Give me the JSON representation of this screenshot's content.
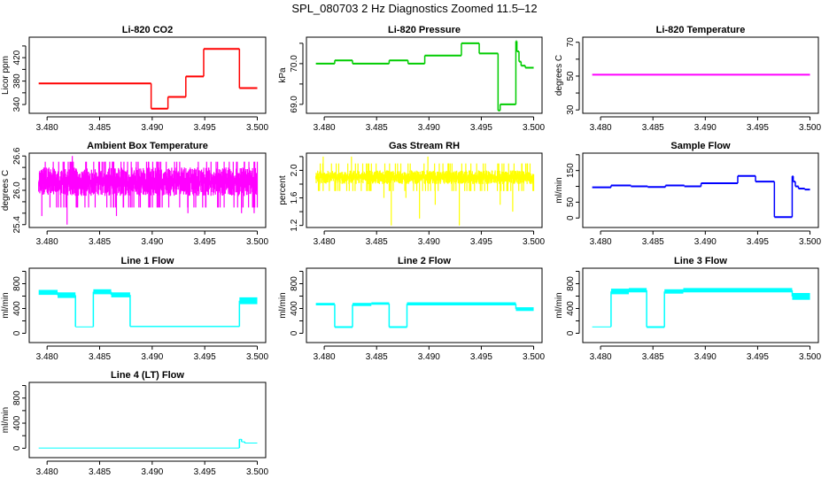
{
  "title": "SPL_080703  2 Hz Diagnostics Zoomed 11.5–12",
  "x_axis": {
    "ticks": [
      3.48,
      3.485,
      3.49,
      3.495,
      3.5
    ],
    "labels": [
      "3.480",
      "3.485",
      "3.490",
      "3.495",
      "3.500"
    ],
    "xlim": [
      3.4783,
      3.5008
    ]
  },
  "chart_data": [
    {
      "type": "line",
      "title": "Li-820 CO2",
      "ylabel": "Licor ppm",
      "color": "#ff0000",
      "ylim": [
        325,
        455
      ],
      "yticks": [
        340,
        360,
        380,
        400,
        420,
        440
      ],
      "ylabels": [
        "340",
        "",
        "380",
        "",
        "420",
        ""
      ],
      "segments": [
        [
          3.4792,
          3.4899,
          376
        ],
        [
          3.4899,
          3.4915,
          333
        ],
        [
          3.4915,
          3.4932,
          353
        ],
        [
          3.4932,
          3.4949,
          388
        ],
        [
          3.4949,
          3.4983,
          435
        ],
        [
          3.4983,
          3.5,
          368
        ]
      ]
    },
    {
      "type": "line",
      "title": "Li-820 Pressure",
      "ylabel": "kPa",
      "color": "#00cc00",
      "ylim": [
        68.78,
        70.65
      ],
      "yticks": [
        69.0,
        69.5,
        70.0,
        70.5
      ],
      "ylabels": [
        "69.0",
        "",
        "70.0",
        ""
      ],
      "segments": [
        [
          3.4792,
          3.481,
          70.0
        ],
        [
          3.481,
          3.4827,
          70.08
        ],
        [
          3.4827,
          3.4862,
          70.0
        ],
        [
          3.4862,
          3.488,
          70.08
        ],
        [
          3.488,
          3.4896,
          70.0
        ],
        [
          3.4896,
          3.4931,
          70.2
        ],
        [
          3.4931,
          3.4948,
          70.5
        ],
        [
          3.4948,
          3.4966,
          70.25
        ],
        [
          3.4966,
          3.4968,
          68.85
        ],
        [
          3.4968,
          3.4983,
          69.0
        ],
        [
          3.4983,
          3.4984,
          70.55
        ],
        [
          3.4984,
          3.4986,
          70.3
        ],
        [
          3.4986,
          3.4988,
          70.05
        ],
        [
          3.4988,
          3.4992,
          69.95
        ],
        [
          3.4992,
          3.5,
          69.9
        ]
      ]
    },
    {
      "type": "line",
      "title": "Li-820 Temperature",
      "ylabel": "degrees C",
      "color": "#ff00ff",
      "ylim": [
        28,
        73
      ],
      "yticks": [
        30,
        40,
        50,
        60,
        70
      ],
      "ylabels": [
        "30",
        "",
        "50",
        "",
        "70"
      ],
      "segments": [
        [
          3.4792,
          3.5,
          50.8
        ]
      ]
    },
    {
      "type": "line",
      "title": "Ambient Box Temperature",
      "ylabel": "degrees C",
      "color": "#ff00ff",
      "ylim": [
        25.35,
        26.65
      ],
      "yticks": [
        25.4,
        25.6,
        25.8,
        26.0,
        26.2,
        26.4,
        26.6
      ],
      "ylabels": [
        "25.4",
        "",
        "",
        "26.0",
        "",
        "",
        "26.6"
      ],
      "noise": {
        "x": [
          3.4792,
          3.5
        ],
        "lo": 25.9,
        "hi": 26.4,
        "rare_lo": 25.7,
        "rare_hi": 26.5
      },
      "spikes": [
        [
          3.4819,
          25.4
        ],
        [
          3.4795,
          25.55
        ],
        [
          3.4866,
          25.55
        ],
        [
          3.4934,
          25.6
        ],
        [
          3.4985,
          25.6
        ],
        [
          3.4997,
          25.6
        ],
        [
          3.4824,
          26.6
        ]
      ]
    },
    {
      "type": "line",
      "title": "Gas Stream RH",
      "ylabel": "percent",
      "color": "#ffff00",
      "ylim": [
        1.17,
        2.25
      ],
      "yticks": [
        1.2,
        1.4,
        1.6,
        1.8,
        2.0,
        2.2
      ],
      "ylabels": [
        "1.2",
        "",
        "1.6",
        "",
        "2.0",
        ""
      ],
      "noise": {
        "x": [
          3.4792,
          3.5
        ],
        "lo": 1.8,
        "hi": 2.0,
        "rare_lo": 1.7,
        "rare_hi": 2.1
      },
      "spikes": [
        [
          3.4864,
          1.2
        ],
        [
          3.4891,
          1.3
        ],
        [
          3.4929,
          1.2
        ],
        [
          3.4906,
          1.5
        ],
        [
          3.4968,
          1.5
        ],
        [
          3.498,
          1.4
        ],
        [
          3.4857,
          1.6
        ],
        [
          3.4878,
          1.6
        ],
        [
          3.4826,
          2.2
        ],
        [
          3.4899,
          2.2
        ],
        [
          3.4799,
          2.2
        ]
      ]
    },
    {
      "type": "line",
      "title": "Sample Flow",
      "ylabel": "ml/min",
      "color": "#0000ff",
      "ylim": [
        -30,
        205
      ],
      "yticks": [
        0,
        50,
        100,
        150,
        200
      ],
      "ylabels": [
        "0",
        "50",
        "",
        "150",
        ""
      ],
      "segments": [
        [
          3.4792,
          3.481,
          97
        ],
        [
          3.481,
          3.4829,
          103
        ],
        [
          3.4829,
          3.4845,
          100
        ],
        [
          3.4845,
          3.4862,
          98
        ],
        [
          3.4862,
          3.488,
          103
        ],
        [
          3.488,
          3.4896,
          100
        ],
        [
          3.4896,
          3.4931,
          110
        ],
        [
          3.4931,
          3.4948,
          133
        ],
        [
          3.4948,
          3.4966,
          115
        ],
        [
          3.4966,
          3.4983,
          3
        ],
        [
          3.4983,
          3.4984,
          132
        ],
        [
          3.4984,
          3.4986,
          115
        ],
        [
          3.4986,
          3.4989,
          100
        ],
        [
          3.4989,
          3.4995,
          93
        ],
        [
          3.4995,
          3.5,
          90
        ]
      ]
    },
    {
      "type": "line",
      "title": "Line 1 Flow",
      "ylabel": "ml/min",
      "color": "#00ffff",
      "ylim": [
        -150,
        1050
      ],
      "yticks": [
        0,
        200,
        400,
        600,
        800,
        1000
      ],
      "ylabels": [
        "0",
        "",
        "400",
        "",
        "800",
        ""
      ],
      "segments": [
        [
          3.4792,
          3.481,
          620,
          700
        ],
        [
          3.481,
          3.4827,
          570,
          660
        ],
        [
          3.4827,
          3.4844,
          100,
          110
        ],
        [
          3.4844,
          3.4861,
          630,
          710
        ],
        [
          3.4861,
          3.4879,
          580,
          660
        ],
        [
          3.4879,
          3.4983,
          100,
          120
        ],
        [
          3.4983,
          3.5,
          470,
          580
        ]
      ]
    },
    {
      "type": "line",
      "title": "Line 2 Flow",
      "ylabel": "ml/min",
      "color": "#00ffff",
      "ylim": [
        -150,
        1050
      ],
      "yticks": [
        0,
        200,
        400,
        600,
        800,
        1000
      ],
      "ylabels": [
        "0",
        "",
        "400",
        "",
        "800",
        ""
      ],
      "segments": [
        [
          3.4792,
          3.481,
          450,
          490
        ],
        [
          3.481,
          3.4827,
          100,
          100
        ],
        [
          3.4827,
          3.4845,
          440,
          490
        ],
        [
          3.4845,
          3.4862,
          460,
          500
        ],
        [
          3.4862,
          3.4879,
          100,
          100
        ],
        [
          3.4879,
          3.4983,
          450,
          500
        ],
        [
          3.4983,
          3.5,
          360,
          420
        ]
      ]
    },
    {
      "type": "line",
      "title": "Line 3 Flow",
      "ylabel": "ml/min",
      "color": "#00ffff",
      "ylim": [
        -150,
        1050
      ],
      "yticks": [
        0,
        200,
        400,
        600,
        800,
        1000
      ],
      "ylabels": [
        "0",
        "",
        "400",
        "",
        "800",
        ""
      ],
      "segments": [
        [
          3.4792,
          3.481,
          100,
          110
        ],
        [
          3.481,
          3.4827,
          630,
          720
        ],
        [
          3.4827,
          3.4844,
          660,
          730
        ],
        [
          3.4844,
          3.4861,
          100,
          100
        ],
        [
          3.4861,
          3.4879,
          640,
          710
        ],
        [
          3.4879,
          3.4983,
          660,
          730
        ],
        [
          3.4983,
          3.5,
          540,
          650
        ]
      ]
    },
    {
      "type": "line",
      "title": "Line 4 (LT) Flow",
      "ylabel": "ml/min",
      "color": "#00ffff",
      "ylim": [
        -150,
        1050
      ],
      "yticks": [
        0,
        200,
        400,
        600,
        800,
        1000
      ],
      "ylabels": [
        "0",
        "",
        "400",
        "",
        "800",
        ""
      ],
      "segments": [
        [
          3.4792,
          3.4983,
          0,
          10
        ],
        [
          3.4983,
          3.4985,
          140,
          150
        ],
        [
          3.4985,
          3.4988,
          100,
          110
        ],
        [
          3.4988,
          3.5,
          80,
          90
        ]
      ]
    }
  ]
}
